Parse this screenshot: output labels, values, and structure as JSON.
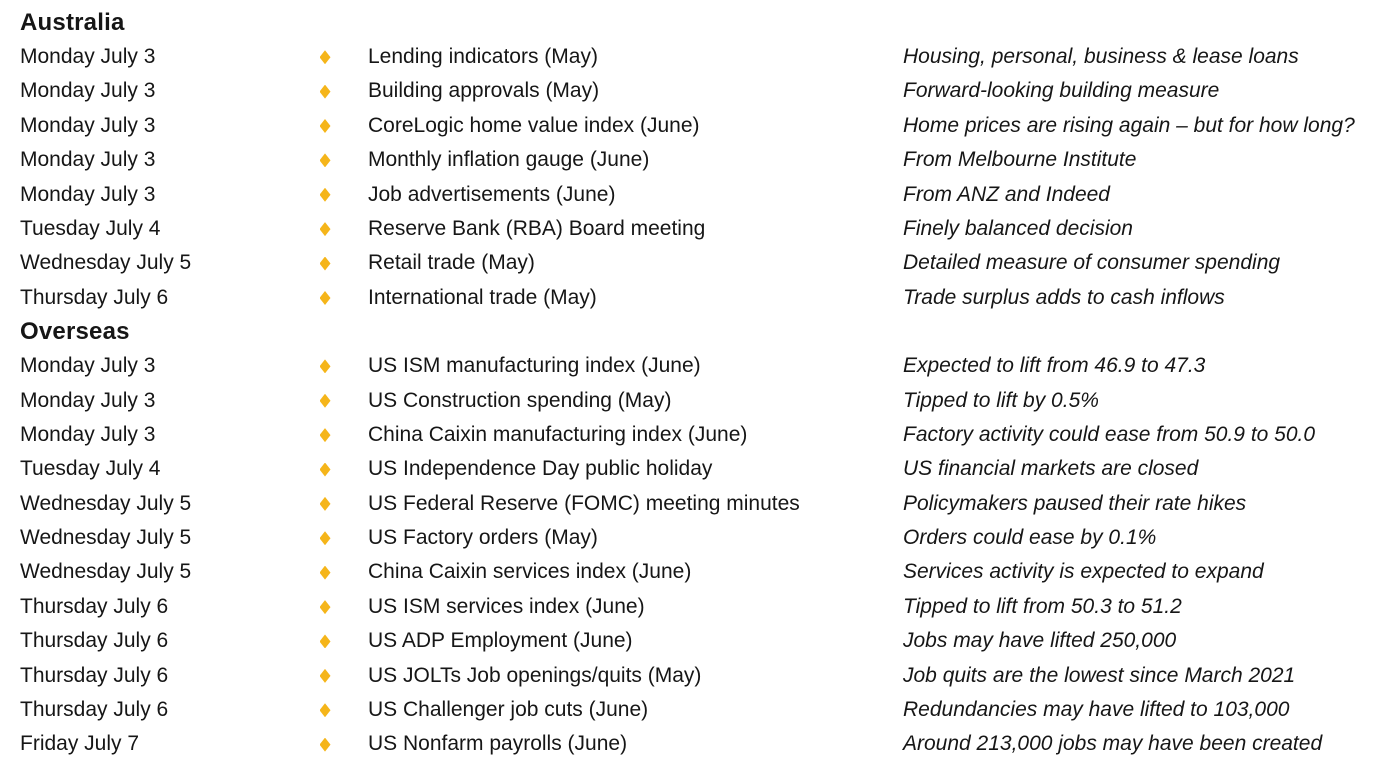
{
  "page": {
    "background_color": "#ffffff",
    "text_color": "#161616",
    "bullet_color": "#F5B51A"
  },
  "sections": [
    {
      "title": "Australia",
      "rows": [
        {
          "date": "Monday July 3",
          "event": "Lending indicators (May)",
          "note": "Housing, personal, business & lease loans"
        },
        {
          "date": "Monday July 3",
          "event": "Building approvals (May)",
          "note": "Forward-looking building measure"
        },
        {
          "date": "Monday July 3",
          "event": "CoreLogic home value index (June)",
          "note": "Home prices are rising again – but for how long?"
        },
        {
          "date": "Monday July 3",
          "event": "Monthly inflation gauge (June)",
          "note": "From Melbourne Institute"
        },
        {
          "date": "Monday July 3",
          "event": "Job advertisements (June)",
          "note": "From ANZ and Indeed"
        },
        {
          "date": "Tuesday July 4",
          "event": "Reserve Bank (RBA) Board meeting",
          "note": "Finely balanced decision"
        },
        {
          "date": "Wednesday July 5",
          "event": "Retail trade (May)",
          "note": "Detailed measure of consumer spending"
        },
        {
          "date": "Thursday July 6",
          "event": "International trade (May)",
          "note": "Trade surplus adds to cash inflows"
        }
      ]
    },
    {
      "title": "Overseas",
      "rows": [
        {
          "date": "Monday July 3",
          "event": "US ISM manufacturing index (June)",
          "note": "Expected to lift from 46.9 to 47.3"
        },
        {
          "date": "Monday July 3",
          "event": "US Construction spending (May)",
          "note": "Tipped to lift by 0.5%"
        },
        {
          "date": "Monday July 3",
          "event": "China Caixin manufacturing index (June)",
          "note": "Factory activity could ease from 50.9 to 50.0"
        },
        {
          "date": "Tuesday July 4",
          "event": "US Independence Day public holiday",
          "note": "US financial markets are closed"
        },
        {
          "date": "Wednesday July 5",
          "event": "US Federal Reserve (FOMC) meeting minutes",
          "note": "Policymakers paused their rate hikes"
        },
        {
          "date": "Wednesday July 5",
          "event": "US Factory orders (May)",
          "note": "Orders could ease by 0.1%"
        },
        {
          "date": "Wednesday July 5",
          "event": "China Caixin services index (June)",
          "note": "Services activity is expected to expand"
        },
        {
          "date": "Thursday July 6",
          "event": "US ISM services index (June)",
          "note": "Tipped to lift from 50.3 to 51.2"
        },
        {
          "date": "Thursday July 6",
          "event": "US ADP Employment (June)",
          "note": "Jobs may have lifted 250,000"
        },
        {
          "date": "Thursday July 6",
          "event": "US JOLTs Job openings/quits (May)",
          "note": "Job quits are the lowest since March 2021"
        },
        {
          "date": "Thursday July 6",
          "event": "US Challenger job cuts (June)",
          "note": "Redundancies may have lifted to 103,000"
        },
        {
          "date": "Friday July 7",
          "event": "US Nonfarm payrolls (June)",
          "note": "Around 213,000 jobs may have been created"
        }
      ]
    }
  ]
}
